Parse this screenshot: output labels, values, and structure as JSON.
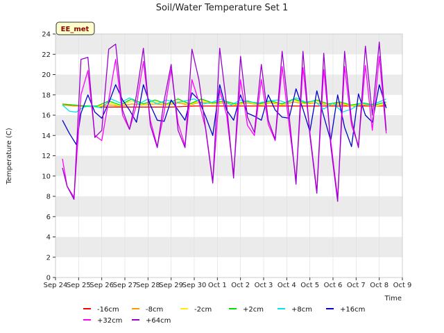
{
  "chart_data": {
    "type": "line",
    "title": "Soil/Water Temperature Set 1",
    "badge": "EE_met",
    "xlabel": "Time",
    "ylabel": "Temperature (C)",
    "ylim": [
      0,
      24
    ],
    "yticks": [
      0,
      2,
      4,
      6,
      8,
      10,
      12,
      14,
      16,
      18,
      20,
      22,
      24
    ],
    "xlim": [
      0,
      15
    ],
    "xtick_labels": [
      "Sep 24",
      "Sep 25",
      "Sep 26",
      "Sep 27",
      "Sep 28",
      "Sep 29",
      "Sep 30",
      "Oct 1",
      "Oct 2",
      "Oct 3",
      "Oct 4",
      "Oct 5",
      "Oct 6",
      "Oct 7",
      "Oct 8",
      "Oct 9"
    ],
    "colors": {
      "band": "#ebebeb",
      "grid": "#ffffff",
      "axes_bg": "#ffffff",
      "badge_bg": "#ffffcc"
    },
    "series": [
      {
        "name": "-16cm",
        "color": "#ff0000",
        "x": [
          0.3,
          1,
          2,
          3,
          4,
          5,
          6,
          7,
          8,
          9,
          10,
          11,
          12,
          13,
          14,
          14.3
        ],
        "values": [
          17.0,
          16.9,
          16.8,
          16.8,
          16.8,
          16.8,
          16.9,
          16.9,
          16.9,
          16.9,
          16.9,
          16.9,
          16.9,
          16.9,
          16.9,
          16.9
        ]
      },
      {
        "name": "-8cm",
        "color": "#ff9900",
        "x": [
          0.3,
          0.8,
          1.3,
          1.8,
          2.3,
          2.8,
          3.3,
          3.8,
          4.3,
          4.8,
          5.3,
          5.8,
          6.3,
          6.8,
          7.3,
          7.8,
          8.3,
          8.8,
          9.3,
          9.8,
          10.3,
          10.8,
          11.3,
          11.8,
          12.3,
          12.8,
          13.3,
          13.8,
          14.3
        ],
        "values": [
          17.0,
          16.9,
          16.9,
          16.8,
          17.0,
          16.9,
          17.1,
          17.0,
          17.1,
          17.0,
          17.2,
          17.0,
          17.3,
          17.1,
          17.2,
          17.0,
          17.2,
          17.0,
          17.2,
          17.0,
          17.3,
          17.1,
          17.2,
          17.0,
          17.1,
          16.9,
          17.0,
          16.9,
          17.0
        ]
      },
      {
        "name": "-2cm",
        "color": "#ffee00",
        "x": [
          0.3,
          0.8,
          1.3,
          1.8,
          2.3,
          2.8,
          3.3,
          3.8,
          4.3,
          4.8,
          5.3,
          5.8,
          6.3,
          6.8,
          7.3,
          7.8,
          8.3,
          8.8,
          9.3,
          9.8,
          10.3,
          10.8,
          11.3,
          11.8,
          12.3,
          12.8,
          13.3,
          13.8,
          14.3
        ],
        "values": [
          17.1,
          17.0,
          16.9,
          16.8,
          17.2,
          16.9,
          17.4,
          17.0,
          17.3,
          17.0,
          17.4,
          17.0,
          17.5,
          17.1,
          17.3,
          17.0,
          17.3,
          17.0,
          17.3,
          17.0,
          17.5,
          17.1,
          17.4,
          17.0,
          17.2,
          16.9,
          17.1,
          16.9,
          17.1
        ]
      },
      {
        "name": "+2cm",
        "color": "#00dd00",
        "x": [
          0.3,
          0.8,
          1.3,
          1.8,
          2.3,
          2.8,
          3.3,
          3.8,
          4.3,
          4.8,
          5.3,
          5.8,
          6.3,
          6.8,
          7.3,
          7.8,
          8.3,
          8.8,
          9.3,
          9.8,
          10.3,
          10.8,
          11.3,
          11.8,
          12.3,
          12.8,
          13.3,
          13.8,
          14.3
        ],
        "values": [
          17.1,
          17.0,
          16.9,
          16.9,
          17.4,
          17.0,
          17.6,
          17.1,
          17.5,
          17.1,
          17.6,
          17.1,
          17.6,
          17.2,
          17.4,
          17.1,
          17.4,
          17.1,
          17.4,
          17.1,
          17.6,
          17.2,
          17.5,
          17.1,
          17.3,
          17.0,
          17.2,
          17.0,
          17.3
        ]
      },
      {
        "name": "+8cm",
        "color": "#00e5ee",
        "x": [
          0.3,
          0.6,
          0.9,
          1.2,
          1.6,
          2.0,
          2.4,
          2.8,
          3.2,
          3.6,
          4.0,
          4.4,
          4.8,
          5.2,
          5.6,
          6.0,
          6.4,
          6.8,
          7.2,
          7.6,
          8.0,
          8.4,
          8.8,
          9.2,
          9.6,
          10.0,
          10.4,
          10.8,
          11.2,
          11.6,
          12.0,
          12.4,
          12.8,
          13.2,
          13.6,
          14.0,
          14.3
        ],
        "values": [
          17.0,
          16.4,
          16.3,
          16.8,
          16.9,
          16.7,
          17.6,
          17.2,
          17.7,
          17.1,
          17.6,
          17.1,
          17.5,
          17.2,
          17.4,
          17.6,
          17.1,
          17.3,
          17.6,
          17.0,
          17.5,
          17.3,
          17.2,
          17.4,
          17.5,
          17.2,
          17.7,
          17.3,
          17.4,
          16.6,
          17.2,
          16.3,
          16.6,
          17.2,
          17.0,
          17.3,
          17.6
        ]
      },
      {
        "name": "+16cm",
        "color": "#0000cc",
        "x": [
          0.3,
          0.6,
          0.9,
          1.1,
          1.4,
          1.7,
          2.0,
          2.3,
          2.6,
          2.9,
          3.2,
          3.5,
          3.8,
          4.1,
          4.4,
          4.7,
          5.0,
          5.3,
          5.6,
          5.9,
          6.2,
          6.5,
          6.8,
          7.1,
          7.4,
          7.7,
          8.0,
          8.3,
          8.6,
          8.9,
          9.2,
          9.5,
          9.8,
          10.1,
          10.4,
          10.7,
          11.0,
          11.3,
          11.6,
          11.9,
          12.2,
          12.5,
          12.8,
          13.1,
          13.4,
          13.7,
          14.0,
          14.3
        ],
        "values": [
          15.5,
          14.2,
          13.1,
          16.2,
          18.0,
          16.3,
          15.7,
          17.2,
          19.0,
          17.5,
          16.5,
          15.3,
          19.0,
          17.0,
          15.5,
          15.4,
          17.5,
          16.5,
          15.5,
          18.2,
          17.5,
          15.8,
          14.0,
          19.0,
          16.5,
          15.5,
          18.0,
          16.2,
          15.9,
          15.5,
          18.0,
          16.5,
          15.8,
          15.7,
          18.6,
          16.6,
          14.4,
          18.4,
          15.9,
          13.5,
          18.0,
          14.8,
          12.9,
          18.1,
          16.0,
          15.3,
          19.0,
          16.7
        ]
      },
      {
        "name": "+32cm",
        "color": "#ff00ff",
        "x": [
          0.3,
          0.5,
          0.8,
          1.1,
          1.4,
          1.7,
          2.0,
          2.3,
          2.6,
          2.9,
          3.2,
          3.5,
          3.8,
          4.1,
          4.4,
          4.7,
          5.0,
          5.3,
          5.6,
          5.9,
          6.2,
          6.5,
          6.8,
          7.1,
          7.4,
          7.7,
          8.0,
          8.3,
          8.6,
          8.9,
          9.2,
          9.5,
          9.8,
          10.1,
          10.4,
          10.7,
          11.0,
          11.3,
          11.6,
          11.9,
          12.2,
          12.5,
          12.8,
          13.1,
          13.4,
          13.7,
          14.0,
          14.3
        ],
        "values": [
          11.7,
          9.0,
          7.9,
          18.0,
          20.4,
          14.0,
          13.5,
          17.5,
          21.5,
          16.0,
          14.6,
          17.0,
          21.3,
          15.5,
          12.9,
          16.3,
          20.5,
          15.2,
          13.0,
          19.5,
          17.3,
          14.6,
          9.5,
          18.5,
          16.0,
          10.2,
          19.5,
          15.0,
          14.0,
          19.5,
          15.1,
          13.5,
          20.8,
          15.0,
          9.6,
          20.7,
          14.3,
          8.5,
          20.5,
          13.5,
          7.8,
          20.8,
          15.0,
          13.0,
          20.9,
          14.5,
          21.8,
          14.2
        ]
      },
      {
        "name": "+64cm",
        "color": "#9900cc",
        "x": [
          0.3,
          0.5,
          0.8,
          1.1,
          1.4,
          1.7,
          2.0,
          2.3,
          2.6,
          2.9,
          3.2,
          3.5,
          3.8,
          4.1,
          4.4,
          4.7,
          5.0,
          5.3,
          5.6,
          5.9,
          6.2,
          6.5,
          6.8,
          7.1,
          7.4,
          7.7,
          8.0,
          8.3,
          8.6,
          8.9,
          9.2,
          9.5,
          9.8,
          10.1,
          10.4,
          10.7,
          11.0,
          11.3,
          11.6,
          11.9,
          12.2,
          12.5,
          12.8,
          13.1,
          13.4,
          13.7,
          14.0,
          14.3
        ],
        "values": [
          10.8,
          9.0,
          7.7,
          21.5,
          21.7,
          13.8,
          14.5,
          22.5,
          23.0,
          16.5,
          14.6,
          18.0,
          22.6,
          15.0,
          12.8,
          17.5,
          21.0,
          14.5,
          12.8,
          22.5,
          19.5,
          14.5,
          9.3,
          22.6,
          17.0,
          9.8,
          21.8,
          15.8,
          14.3,
          21.0,
          15.5,
          13.6,
          22.3,
          16.0,
          9.2,
          22.3,
          14.0,
          8.3,
          22.1,
          13.0,
          7.5,
          22.3,
          15.5,
          12.8,
          22.8,
          16.0,
          23.2,
          14.5
        ]
      }
    ]
  }
}
